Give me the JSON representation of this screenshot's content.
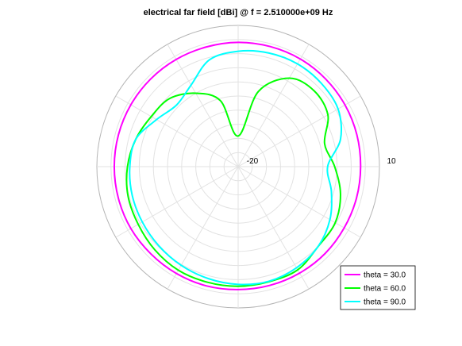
{
  "chart_data": {
    "type": "line",
    "subtype": "polar",
    "title": "electrical far field [dBi] @ f = 2.510000e+09 Hz",
    "r_tick_labels": [
      "-20",
      "10"
    ],
    "rlim": [
      -20,
      10
    ],
    "grid": true,
    "legend_position": "bottom-right",
    "series": [
      {
        "name": "theta = 30.0",
        "color": "#ff00ff",
        "phi_deg": [
          0,
          15,
          30,
          45,
          60,
          75,
          90,
          105,
          120,
          135,
          150,
          165,
          180,
          195,
          210,
          225,
          240,
          255,
          270,
          285,
          300,
          315,
          330,
          345,
          360
        ],
        "r_dbi": [
          6.0,
          6.1,
          6.2,
          6.3,
          6.4,
          6.4,
          6.4,
          6.3,
          6.3,
          6.3,
          6.3,
          6.3,
          6.3,
          6.3,
          6.3,
          6.2,
          6.2,
          6.2,
          6.1,
          6.1,
          6.1,
          6.1,
          6.0,
          6.0,
          6.0
        ]
      },
      {
        "name": "theta = 60.0",
        "color": "#00ff00",
        "phi_deg": [
          0,
          15,
          30,
          45,
          60,
          75,
          90,
          105,
          120,
          135,
          150,
          165,
          180,
          195,
          210,
          225,
          240,
          255,
          270,
          285,
          300,
          315,
          330,
          345,
          360
        ],
        "r_dbi": [
          0.5,
          -1.0,
          2.0,
          2.8,
          1.7,
          -3.5,
          -13.5,
          -5.5,
          -2.0,
          0.5,
          1.3,
          2.5,
          3.5,
          4.2,
          4.5,
          5.0,
          5.4,
          5.4,
          5.4,
          5.3,
          5.3,
          4.0,
          3.8,
          2.5,
          0.5
        ]
      },
      {
        "name": "theta = 90.0",
        "color": "#00ffff",
        "phi_deg": [
          0,
          15,
          30,
          45,
          60,
          75,
          90,
          105,
          120,
          135,
          150,
          165,
          180,
          195,
          210,
          225,
          240,
          255,
          270,
          285,
          300,
          315,
          330,
          345,
          360
        ],
        "r_dbi": [
          -1.0,
          2.5,
          4.5,
          5.0,
          5.2,
          5.0,
          4.5,
          3.5,
          0.0,
          -1.5,
          0.0,
          2.5,
          3.0,
          3.3,
          3.5,
          3.8,
          4.2,
          4.6,
          5.0,
          5.2,
          4.8,
          4.0,
          2.5,
          0.5,
          -1.0
        ]
      }
    ]
  }
}
